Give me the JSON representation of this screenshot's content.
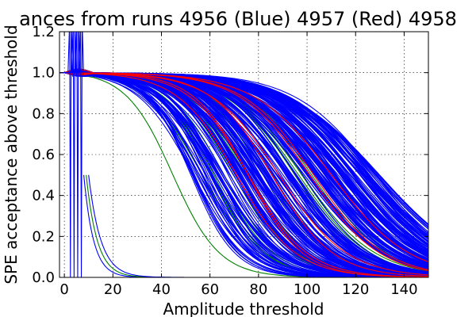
{
  "chart_data": {
    "type": "line",
    "title": "ances from runs 4956 (Blue) 4957 (Red) 4958",
    "xlabel": "Amplitude threshold",
    "ylabel": "SPE acceptance above threshold",
    "xlim": [
      -2,
      150
    ],
    "ylim": [
      0,
      1.2
    ],
    "xticks": [
      "0",
      "20",
      "40",
      "60",
      "80",
      "100",
      "120",
      "140"
    ],
    "yticks": [
      "0.0",
      "0.2",
      "0.4",
      "0.6",
      "0.8",
      "1.0",
      "1.2"
    ],
    "xtick_values": [
      0,
      20,
      40,
      60,
      80,
      100,
      120,
      140
    ],
    "ytick_values": [
      0,
      0.2,
      0.4,
      0.6,
      0.8,
      1.0,
      1.2
    ],
    "grid": true,
    "colors": {
      "blue": "#0000ff",
      "red": "#ff0000",
      "green": "#008000"
    },
    "series": [
      {
        "color": "blue",
        "count": 260,
        "midpoint_range": [
          52,
          130
        ],
        "width_range": [
          9,
          20
        ]
      },
      {
        "color": "red",
        "count": 8,
        "midpoint_range": [
          68,
          122
        ],
        "width_range": [
          10,
          18
        ]
      },
      {
        "color": "green",
        "count": 26,
        "midpoint_range": [
          44,
          105
        ],
        "width_range": [
          9,
          16
        ]
      }
    ],
    "spike_curves": [
      {
        "color": "blue",
        "x": 2.5
      },
      {
        "color": "blue",
        "x": 4.0
      },
      {
        "color": "blue",
        "x": 5.5
      },
      {
        "color": "blue",
        "x": 7.0
      }
    ],
    "low_curves": [
      {
        "color": "blue",
        "x0": 8,
        "decay": 4
      },
      {
        "color": "green",
        "x0": 9,
        "decay": 4.5
      },
      {
        "color": "blue",
        "x0": 10,
        "decay": 5
      }
    ]
  }
}
